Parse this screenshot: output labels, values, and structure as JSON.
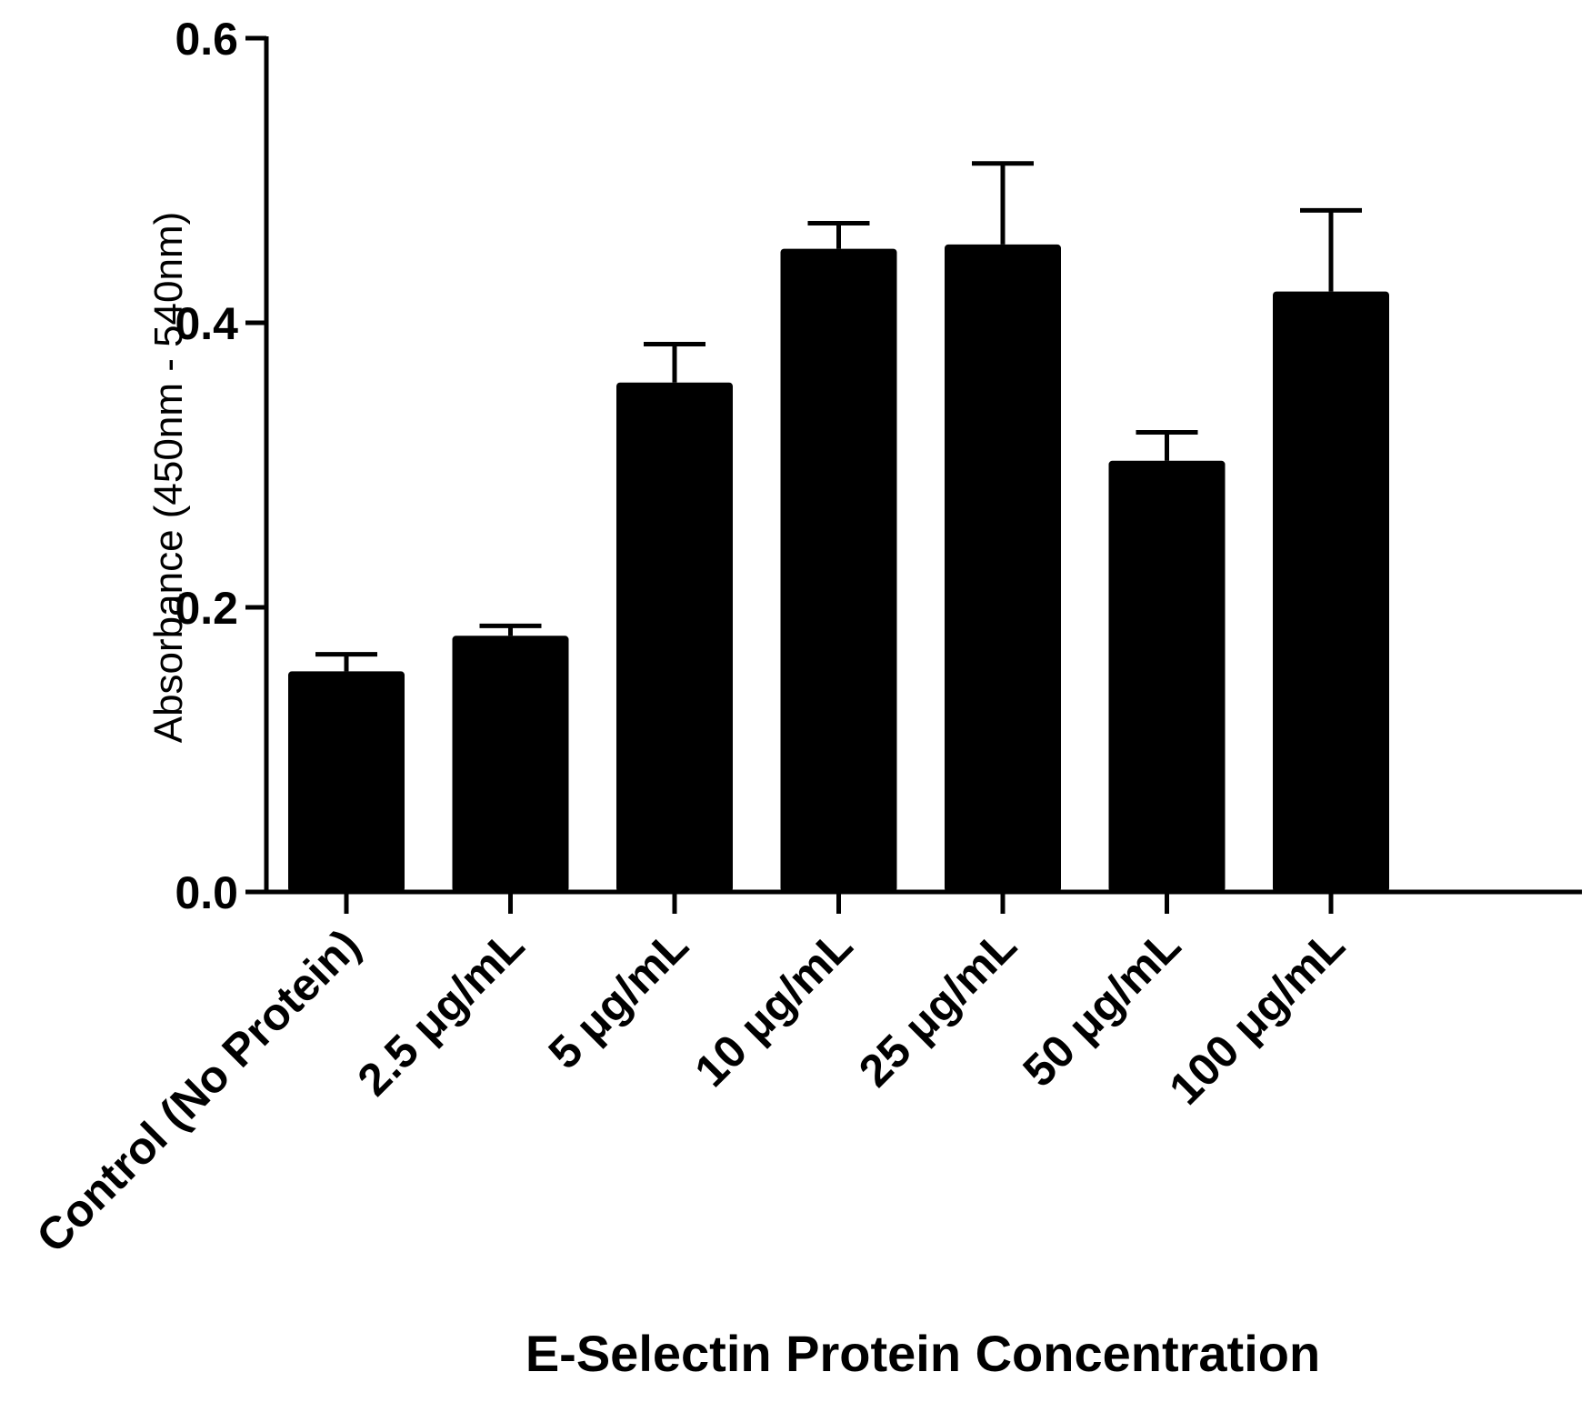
{
  "chart_data": {
    "type": "bar",
    "categories": [
      "Control (No Protein)",
      "2.5 μg/mL",
      "5 μg/mL",
      "10 μg/mL",
      "25 μg/mL",
      "50 μg/mL",
      "100 μg/mL"
    ],
    "values": [
      0.155,
      0.18,
      0.358,
      0.452,
      0.455,
      0.303,
      0.422
    ],
    "error_upper": [
      0.167,
      0.187,
      0.385,
      0.47,
      0.512,
      0.323,
      0.479
    ],
    "xlabel": "E-Selectin Protein Concentration",
    "ylabel": "Absorbance (450nm - 540nm)",
    "ylim": [
      0,
      0.6
    ],
    "yticks": [
      0.0,
      0.2,
      0.4,
      0.6
    ],
    "ytick_labels": [
      "0.0",
      "0.2",
      "0.4",
      "0.6"
    ],
    "bar_color": "#000000",
    "legend": null,
    "grid": false
  }
}
